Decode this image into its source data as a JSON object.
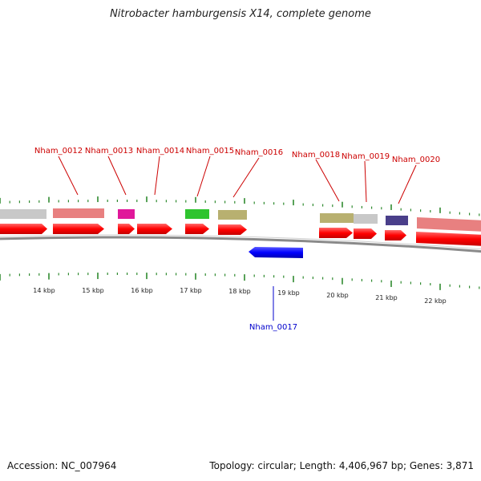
{
  "title": "Nitrobacter hamburgensis X14, complete genome",
  "footer": {
    "accession": "Accession: NC_007964",
    "summary": "Topology: circular; Length: 4,406,967 bp; Genes: 3,871"
  },
  "colors": {
    "gene_label_forward": "#cc0000",
    "gene_label_reverse": "#0000cc",
    "tick": "#2f8a2f",
    "gene_arrow": "#ff0000",
    "reverse_arrow": "#0000ff",
    "backbone": "#888888"
  },
  "scale": {
    "unit": "kbp",
    "labels": [
      "14 kbp",
      "15 kbp",
      "16 kbp",
      "17 kbp",
      "18 kbp",
      "19 kbp",
      "20 kbp",
      "21 kbp",
      "22 kbp"
    ]
  },
  "genes": [
    {
      "name": "Nham_0012",
      "strand": "+"
    },
    {
      "name": "Nham_0013",
      "strand": "+"
    },
    {
      "name": "Nham_0014",
      "strand": "+"
    },
    {
      "name": "Nham_0015",
      "strand": "+"
    },
    {
      "name": "Nham_0016",
      "strand": "+"
    },
    {
      "name": "Nham_0017",
      "strand": "-"
    },
    {
      "name": "Nham_0018",
      "strand": "+"
    },
    {
      "name": "Nham_0019",
      "strand": "+"
    },
    {
      "name": "Nham_0020",
      "strand": "+"
    }
  ]
}
